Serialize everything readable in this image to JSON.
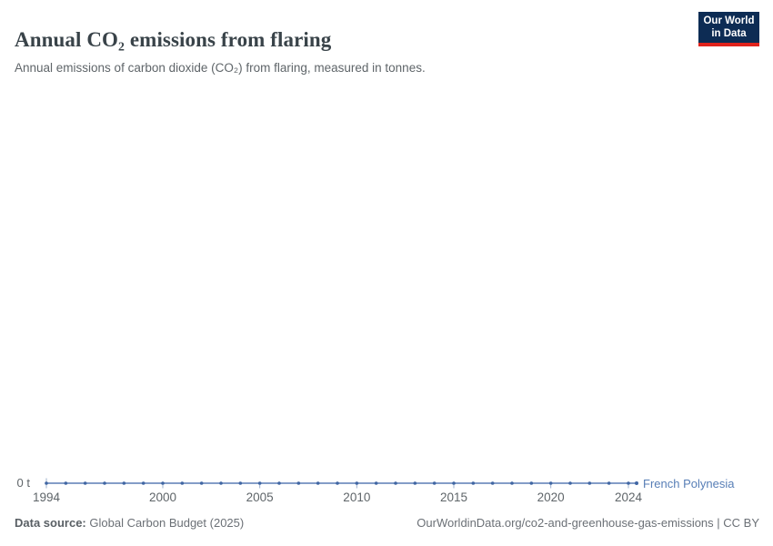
{
  "header": {
    "title": "Annual CO₂ emissions from flaring",
    "subtitle": "Annual emissions of carbon dioxide (CO₂) from flaring, measured in tonnes.",
    "logo": {
      "line1": "Our World",
      "line2": "in Data"
    }
  },
  "chart_data": {
    "type": "line",
    "title": "Annual CO₂ emissions from flaring",
    "xlabel": "",
    "ylabel": "",
    "y_axis_zero_label": "0 t",
    "x": [
      1994,
      1995,
      1996,
      1997,
      1998,
      1999,
      2000,
      2001,
      2002,
      2003,
      2004,
      2005,
      2006,
      2007,
      2008,
      2009,
      2010,
      2011,
      2012,
      2013,
      2014,
      2015,
      2016,
      2017,
      2018,
      2019,
      2020,
      2021,
      2022,
      2023,
      2024
    ],
    "x_ticks": [
      1994,
      2000,
      2005,
      2010,
      2015,
      2020,
      2024
    ],
    "xlim": [
      1994,
      2024
    ],
    "ylim": [
      0,
      0
    ],
    "grid": false,
    "legend_position": "end-of-line",
    "series": [
      {
        "name": "French Polynesia",
        "color": "#577eb6",
        "line_color": "#5b7db6",
        "point_color": "#4066a3",
        "values": [
          0,
          0,
          0,
          0,
          0,
          0,
          0,
          0,
          0,
          0,
          0,
          0,
          0,
          0,
          0,
          0,
          0,
          0,
          0,
          0,
          0,
          0,
          0,
          0,
          0,
          0,
          0,
          0,
          0,
          0,
          0
        ]
      }
    ]
  },
  "footer": {
    "source_label": "Data source:",
    "source_value": "Global Carbon Budget (2025)",
    "credit": "OurWorldinData.org/co2-and-greenhouse-gas-emissions | CC BY"
  },
  "colors": {
    "background": "#ffffff",
    "title_text": "#394349",
    "muted_text": "#5f6569",
    "footer_text": "#6b7076",
    "logo_navy": "#0d2c54",
    "logo_red": "#e0231c",
    "series_line": "#5b7db6",
    "series_point": "#4066a3",
    "axis_tick": "#9db0cd"
  }
}
